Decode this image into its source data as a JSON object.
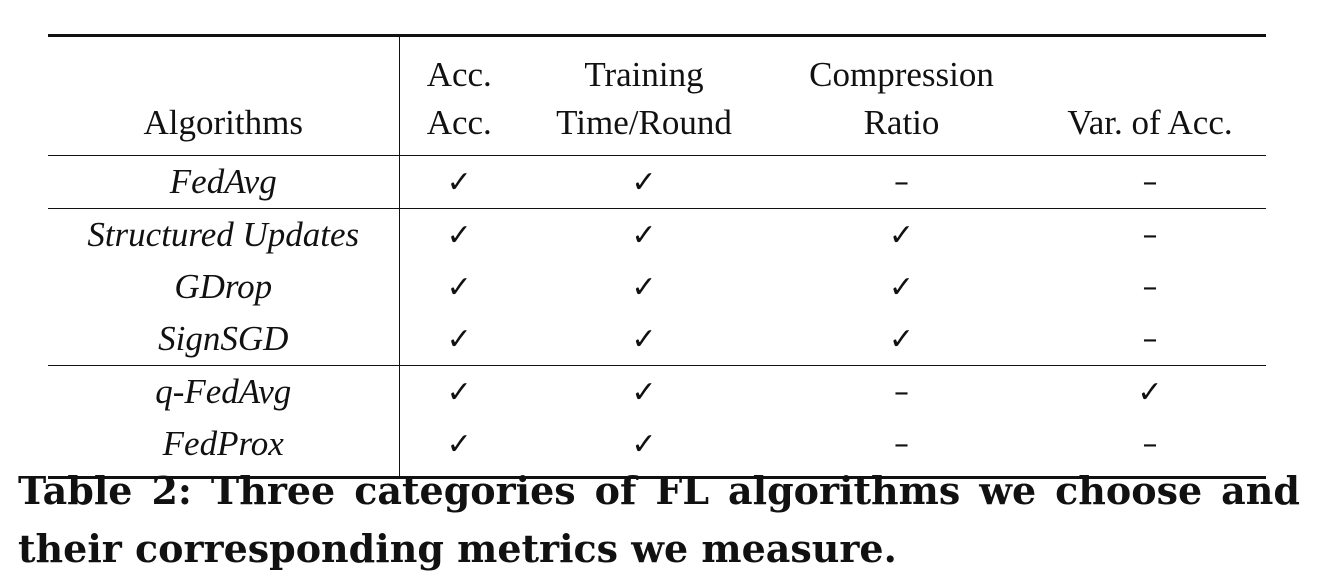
{
  "table": {
    "headers": {
      "algorithms": "Algorithms",
      "acc_line1": "Acc.",
      "acc_line2": "Acc.",
      "training_line1": "Training",
      "training_line2": "Time/Round",
      "compression_line1": "Compression",
      "compression_line2": "Ratio",
      "variance": "Var. of Acc."
    },
    "rows": [
      {
        "name": "FedAvg",
        "acc": "✓",
        "time": "✓",
        "compression": "–",
        "variance": "–"
      },
      {
        "name": "Structured Updates",
        "acc": "✓",
        "time": "✓",
        "compression": "✓",
        "variance": "–"
      },
      {
        "name": "GDrop",
        "acc": "✓",
        "time": "✓",
        "compression": "✓",
        "variance": "–"
      },
      {
        "name": "SignSGD",
        "acc": "✓",
        "time": "✓",
        "compression": "✓",
        "variance": "–"
      },
      {
        "name": "q-FedAvg",
        "acc": "✓",
        "time": "✓",
        "compression": "–",
        "variance": "✓"
      },
      {
        "name": "FedProx",
        "acc": "✓",
        "time": "✓",
        "compression": "–",
        "variance": "–"
      }
    ]
  },
  "caption": {
    "line1": "Table 2: Three categories of FL algorithms we choose and",
    "line2": "their corresponding metrics we measure."
  }
}
